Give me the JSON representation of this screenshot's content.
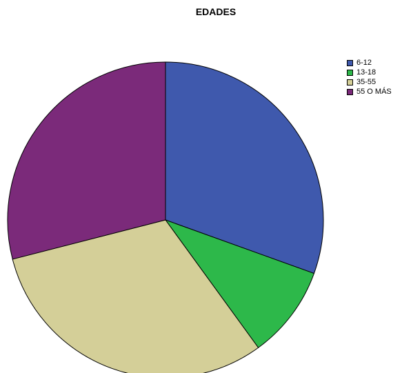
{
  "chart_data": {
    "type": "pie",
    "title": "EDADES",
    "categories": [
      "6-12",
      "13-18",
      "35-55",
      "55 O MÁS"
    ],
    "values": [
      30.5,
      9.5,
      31,
      29
    ],
    "colors": [
      "#3f59ad",
      "#2db84a",
      "#d4cf98",
      "#7b2a7a"
    ],
    "legend_position": "top-right"
  }
}
